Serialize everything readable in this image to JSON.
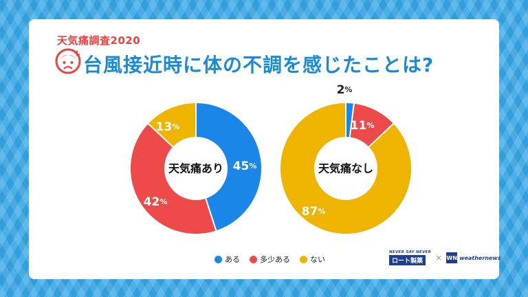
{
  "header": {
    "subtitle": "天気痛調査2020",
    "title": "台風接近時に体の不調を感じたことは?"
  },
  "colors": {
    "aru": "#1a86e8",
    "tashou": "#ef4a4a",
    "nai": "#efb400",
    "title": "#1a8ad8",
    "subtitle": "#e8433f"
  },
  "chart_data": [
    {
      "type": "pie",
      "center_label": "天気痛あり",
      "categories": [
        "ある",
        "多少ある",
        "ない"
      ],
      "values": [
        45,
        42,
        13
      ],
      "value_labels": [
        "45",
        "42",
        "13"
      ],
      "unit": "%"
    },
    {
      "type": "pie",
      "center_label": "天気痛なし",
      "categories": [
        "ある",
        "多少ある",
        "ない"
      ],
      "values": [
        2,
        11,
        87
      ],
      "value_labels": [
        "2",
        "11",
        "87"
      ],
      "unit": "%"
    }
  ],
  "legend": {
    "items": [
      {
        "label": "ある",
        "color": "#1a86e8"
      },
      {
        "label": "多少ある",
        "color": "#ef4a4a"
      },
      {
        "label": "ない",
        "color": "#efb400"
      }
    ]
  },
  "logos": {
    "rohto_tagline": "NEVER SAY NEVER",
    "rohto_name": "ロート製薬",
    "times": "×",
    "wn_mark": "WN",
    "wn_name": "weathernews"
  }
}
